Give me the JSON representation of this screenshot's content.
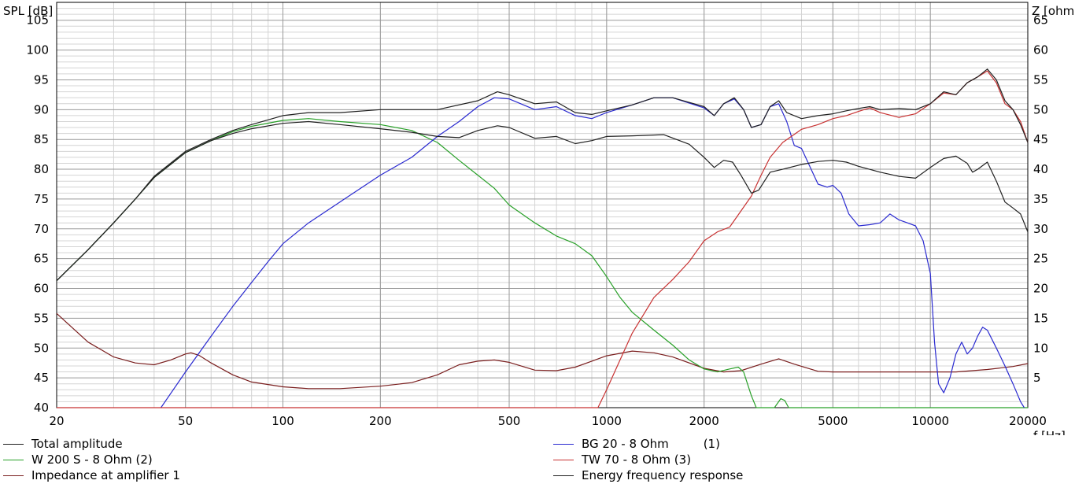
{
  "chart_data": {
    "type": "line",
    "y_left_label": "SPL [dB]",
    "y_right_label": "Z [ohm",
    "x_label": "f [Hz]",
    "x_scale": "log",
    "xlim": [
      20,
      20000
    ],
    "ylim_left": [
      40,
      108
    ],
    "ylim_right": [
      0,
      68
    ],
    "x_ticks": [
      "20",
      "50",
      "100",
      "200",
      "500",
      "1000",
      "2000",
      "5000",
      "10000",
      "20000"
    ],
    "y_left_ticks": [
      "40",
      "45",
      "50",
      "55",
      "60",
      "65",
      "70",
      "75",
      "80",
      "85",
      "90",
      "95",
      "100",
      "105"
    ],
    "y_right_ticks": [
      "5",
      "10",
      "15",
      "20",
      "25",
      "30",
      "35",
      "40",
      "45",
      "50",
      "55",
      "60",
      "65"
    ],
    "grid": true,
    "series": [
      {
        "name": "Total amplitude",
        "color": "#202020",
        "axis": "left",
        "points": [
          [
            20,
            61.3
          ],
          [
            25,
            66.5
          ],
          [
            30,
            71
          ],
          [
            35,
            75
          ],
          [
            40,
            78.8
          ],
          [
            50,
            83
          ],
          [
            60,
            85
          ],
          [
            70,
            86.5
          ],
          [
            80,
            87.5
          ],
          [
            100,
            89
          ],
          [
            120,
            89.5
          ],
          [
            150,
            89.5
          ],
          [
            200,
            90
          ],
          [
            300,
            90
          ],
          [
            400,
            91.5
          ],
          [
            460,
            93
          ],
          [
            500,
            92.5
          ],
          [
            600,
            91
          ],
          [
            700,
            91.3
          ],
          [
            800,
            89.5
          ],
          [
            900,
            89.2
          ],
          [
            1000,
            89.8
          ],
          [
            1200,
            90.8
          ],
          [
            1400,
            92
          ],
          [
            1600,
            92
          ],
          [
            2000,
            90.5
          ],
          [
            2150,
            89
          ],
          [
            2300,
            91
          ],
          [
            2480,
            92
          ],
          [
            2650,
            90
          ],
          [
            2800,
            87
          ],
          [
            3000,
            87.5
          ],
          [
            3200,
            90.5
          ],
          [
            3400,
            91.5
          ],
          [
            3600,
            89.5
          ],
          [
            4000,
            88.5
          ],
          [
            4500,
            89
          ],
          [
            5000,
            89.3
          ],
          [
            5500,
            89.8
          ],
          [
            6000,
            90.2
          ],
          [
            6500,
            90.5
          ],
          [
            7000,
            90
          ],
          [
            8000,
            90.2
          ],
          [
            9000,
            90
          ],
          [
            10000,
            91
          ],
          [
            11000,
            93
          ],
          [
            12000,
            92.5
          ],
          [
            13000,
            94.5
          ],
          [
            14000,
            95.5
          ],
          [
            15000,
            96.8
          ],
          [
            16000,
            95
          ],
          [
            17000,
            91.5
          ],
          [
            18000,
            90
          ],
          [
            19000,
            87.5
          ],
          [
            20000,
            84.5
          ]
        ]
      },
      {
        "name": "BG 20 - 8 Ohm",
        "suffix": "(1)",
        "color": "#2a2ad0",
        "axis": "left",
        "points": [
          [
            42,
            40
          ],
          [
            50,
            46
          ],
          [
            60,
            52
          ],
          [
            70,
            57
          ],
          [
            80,
            61
          ],
          [
            90,
            64.5
          ],
          [
            100,
            67.5
          ],
          [
            120,
            71
          ],
          [
            150,
            74.5
          ],
          [
            200,
            79
          ],
          [
            250,
            82
          ],
          [
            300,
            85.5
          ],
          [
            350,
            88
          ],
          [
            400,
            90.5
          ],
          [
            450,
            92
          ],
          [
            500,
            91.8
          ],
          [
            600,
            90
          ],
          [
            700,
            90.5
          ],
          [
            800,
            89
          ],
          [
            900,
            88.5
          ],
          [
            1000,
            89.5
          ],
          [
            1200,
            90.8
          ],
          [
            1400,
            92
          ],
          [
            1600,
            92
          ],
          [
            2000,
            90.3
          ],
          [
            2150,
            89
          ],
          [
            2300,
            91
          ],
          [
            2480,
            91.8
          ],
          [
            2650,
            90
          ],
          [
            2800,
            87
          ],
          [
            3000,
            87.5
          ],
          [
            3200,
            90.5
          ],
          [
            3400,
            91
          ],
          [
            3600,
            88
          ],
          [
            3800,
            84
          ],
          [
            4000,
            83.5
          ],
          [
            4200,
            81
          ],
          [
            4500,
            77.5
          ],
          [
            4800,
            77
          ],
          [
            5000,
            77.3
          ],
          [
            5300,
            76
          ],
          [
            5600,
            72.5
          ],
          [
            6000,
            70.5
          ],
          [
            6500,
            70.7
          ],
          [
            7000,
            71
          ],
          [
            7500,
            72.5
          ],
          [
            8000,
            71.5
          ],
          [
            8500,
            71
          ],
          [
            9000,
            70.5
          ],
          [
            9500,
            68
          ],
          [
            10000,
            62.5
          ],
          [
            10300,
            51
          ],
          [
            10600,
            44
          ],
          [
            11000,
            42.5
          ],
          [
            11500,
            45
          ],
          [
            12000,
            49
          ],
          [
            12500,
            51
          ],
          [
            13000,
            49
          ],
          [
            13500,
            50
          ],
          [
            14000,
            52
          ],
          [
            14500,
            53.5
          ],
          [
            15000,
            53
          ],
          [
            16000,
            50
          ],
          [
            17000,
            47
          ],
          [
            18000,
            44
          ],
          [
            19000,
            41
          ],
          [
            19500,
            40
          ]
        ]
      },
      {
        "name": "W 200 S - 8 Ohm (2)",
        "color": "#28a028",
        "axis": "left",
        "points": [
          [
            20,
            61.3
          ],
          [
            25,
            66.5
          ],
          [
            30,
            71
          ],
          [
            35,
            75
          ],
          [
            40,
            78.6
          ],
          [
            50,
            82.8
          ],
          [
            60,
            84.8
          ],
          [
            70,
            86.3
          ],
          [
            80,
            87.2
          ],
          [
            100,
            88.2
          ],
          [
            120,
            88.5
          ],
          [
            150,
            88
          ],
          [
            200,
            87.5
          ],
          [
            250,
            86.5
          ],
          [
            300,
            84.5
          ],
          [
            350,
            81.5
          ],
          [
            400,
            79
          ],
          [
            450,
            76.8
          ],
          [
            500,
            74
          ],
          [
            600,
            71
          ],
          [
            700,
            68.8
          ],
          [
            800,
            67.5
          ],
          [
            900,
            65.5
          ],
          [
            1000,
            62
          ],
          [
            1100,
            58.5
          ],
          [
            1200,
            56
          ],
          [
            1400,
            53
          ],
          [
            1600,
            50.5
          ],
          [
            1800,
            48
          ],
          [
            2000,
            46.5
          ],
          [
            2200,
            46
          ],
          [
            2400,
            46.5
          ],
          [
            2550,
            46.8
          ],
          [
            2650,
            46
          ],
          [
            2800,
            42
          ],
          [
            2900,
            40
          ],
          [
            3300,
            40
          ],
          [
            3450,
            41.5
          ],
          [
            3550,
            41.2
          ],
          [
            3650,
            40
          ],
          [
            20000,
            40
          ]
        ]
      },
      {
        "name": "TW 70 - 8 Ohm (3)",
        "color": "#c83232",
        "axis": "left",
        "points": [
          [
            20,
            40
          ],
          [
            940,
            40
          ],
          [
            1000,
            43
          ],
          [
            1100,
            48
          ],
          [
            1200,
            52.5
          ],
          [
            1400,
            58.5
          ],
          [
            1600,
            61.5
          ],
          [
            1800,
            64.5
          ],
          [
            2000,
            68
          ],
          [
            2200,
            69.5
          ],
          [
            2400,
            70.3
          ],
          [
            2600,
            73
          ],
          [
            2800,
            75.5
          ],
          [
            3000,
            79
          ],
          [
            3200,
            82
          ],
          [
            3500,
            84.5
          ],
          [
            4000,
            86.7
          ],
          [
            4500,
            87.5
          ],
          [
            5000,
            88.5
          ],
          [
            5500,
            89
          ],
          [
            6000,
            89.7
          ],
          [
            6500,
            90.3
          ],
          [
            7000,
            89.5
          ],
          [
            8000,
            88.7
          ],
          [
            9000,
            89.3
          ],
          [
            10000,
            91
          ],
          [
            11000,
            92.8
          ],
          [
            12000,
            92.5
          ],
          [
            13000,
            94.5
          ],
          [
            14000,
            95.5
          ],
          [
            15000,
            96.5
          ],
          [
            16000,
            94.5
          ],
          [
            17000,
            91
          ],
          [
            18000,
            90
          ],
          [
            19000,
            88
          ],
          [
            20000,
            84.5
          ]
        ]
      },
      {
        "name": "Impedance at amplifier 1",
        "color": "#7a1e1e",
        "axis": "right",
        "points": [
          [
            20,
            15.8
          ],
          [
            25,
            11
          ],
          [
            30,
            8.5
          ],
          [
            35,
            7.5
          ],
          [
            40,
            7.2
          ],
          [
            45,
            8
          ],
          [
            50,
            9
          ],
          [
            52,
            9.2
          ],
          [
            55,
            8.8
          ],
          [
            60,
            7.5
          ],
          [
            70,
            5.5
          ],
          [
            80,
            4.3
          ],
          [
            100,
            3.5
          ],
          [
            120,
            3.2
          ],
          [
            150,
            3.2
          ],
          [
            200,
            3.6
          ],
          [
            250,
            4.2
          ],
          [
            300,
            5.5
          ],
          [
            350,
            7.2
          ],
          [
            400,
            7.8
          ],
          [
            450,
            8
          ],
          [
            500,
            7.6
          ],
          [
            600,
            6.3
          ],
          [
            700,
            6.2
          ],
          [
            800,
            6.8
          ],
          [
            900,
            7.8
          ],
          [
            1000,
            8.7
          ],
          [
            1200,
            9.5
          ],
          [
            1400,
            9.2
          ],
          [
            1600,
            8.5
          ],
          [
            2000,
            6.6
          ],
          [
            2300,
            6
          ],
          [
            2600,
            6.2
          ],
          [
            3000,
            7.3
          ],
          [
            3400,
            8.2
          ],
          [
            3800,
            7.3
          ],
          [
            4500,
            6.1
          ],
          [
            5000,
            6
          ],
          [
            6000,
            6
          ],
          [
            8000,
            6
          ],
          [
            10000,
            6
          ],
          [
            12000,
            6
          ],
          [
            15000,
            6.4
          ],
          [
            18000,
            6.9
          ],
          [
            20000,
            7.4
          ]
        ]
      },
      {
        "name": "Energy frequency response",
        "color": "#202020",
        "axis": "left",
        "points": [
          [
            20,
            61.3
          ],
          [
            25,
            66.5
          ],
          [
            30,
            71
          ],
          [
            35,
            75
          ],
          [
            40,
            78.6
          ],
          [
            50,
            82.8
          ],
          [
            60,
            84.8
          ],
          [
            70,
            86
          ],
          [
            80,
            86.8
          ],
          [
            100,
            87.7
          ],
          [
            120,
            88
          ],
          [
            150,
            87.5
          ],
          [
            200,
            86.8
          ],
          [
            250,
            86.2
          ],
          [
            300,
            85.5
          ],
          [
            350,
            85.3
          ],
          [
            400,
            86.5
          ],
          [
            460,
            87.3
          ],
          [
            500,
            87
          ],
          [
            600,
            85.2
          ],
          [
            700,
            85.5
          ],
          [
            800,
            84.3
          ],
          [
            900,
            84.8
          ],
          [
            1000,
            85.5
          ],
          [
            1200,
            85.6
          ],
          [
            1500,
            85.8
          ],
          [
            1800,
            84.2
          ],
          [
            2000,
            82
          ],
          [
            2150,
            80.3
          ],
          [
            2300,
            81.5
          ],
          [
            2450,
            81.2
          ],
          [
            2600,
            79
          ],
          [
            2800,
            76
          ],
          [
            2950,
            76.5
          ],
          [
            3200,
            79.5
          ],
          [
            3500,
            80
          ],
          [
            4000,
            80.8
          ],
          [
            4500,
            81.3
          ],
          [
            5000,
            81.5
          ],
          [
            5500,
            81.2
          ],
          [
            6000,
            80.5
          ],
          [
            7000,
            79.5
          ],
          [
            8000,
            78.8
          ],
          [
            9000,
            78.5
          ],
          [
            10000,
            80.3
          ],
          [
            11000,
            81.8
          ],
          [
            12000,
            82.2
          ],
          [
            13000,
            81
          ],
          [
            13500,
            79.5
          ],
          [
            14000,
            80
          ],
          [
            15000,
            81.2
          ],
          [
            16000,
            78
          ],
          [
            17000,
            74.5
          ],
          [
            18000,
            73.5
          ],
          [
            19000,
            72.5
          ],
          [
            20000,
            69.5
          ]
        ]
      }
    ]
  }
}
